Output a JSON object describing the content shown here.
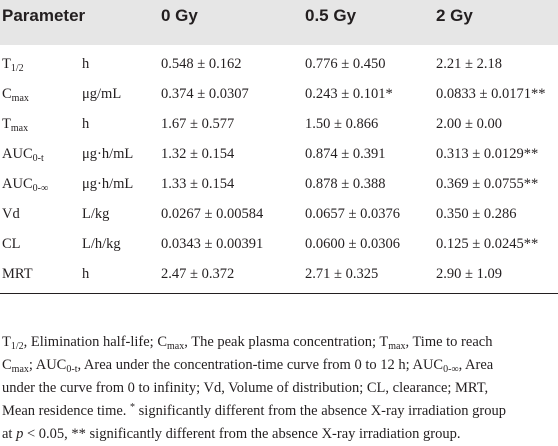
{
  "table": {
    "headers": [
      "Parameter",
      "0 Gy",
      "0.5 Gy",
      "2 Gy"
    ],
    "rows": [
      {
        "base": "T",
        "sub": "1/2",
        "unit": "h",
        "g0": "0.548 ± 0.162",
        "g05": "0.776 ± 0.450",
        "g2": "2.21 ± 2.18"
      },
      {
        "base": "C",
        "sub": "max",
        "unit": "μg/mL",
        "g0": "0.374 ± 0.0307",
        "g05": "0.243 ± 0.101*",
        "g2": "0.0833 ± 0.0171**"
      },
      {
        "base": "T",
        "sub": "max",
        "unit": "h",
        "g0": "1.67 ± 0.577",
        "g05": "1.50 ± 0.866",
        "g2": "2.00 ± 0.00"
      },
      {
        "base": "AUC",
        "sub": "0-t",
        "unit": "μg·h/mL",
        "g0": "1.32 ± 0.154",
        "g05": "0.874 ± 0.391",
        "g2": "0.313 ± 0.0129**"
      },
      {
        "base": "AUC",
        "sub": "0-∞",
        "unit": "μg·h/mL",
        "g0": "1.33 ± 0.154",
        "g05": "0.878 ± 0.388",
        "g2": "0.369 ± 0.0755**"
      },
      {
        "base": "Vd",
        "sub": "",
        "unit": "L/kg",
        "g0": "0.0267 ± 0.00584",
        "g05": "0.0657 ± 0.0376",
        "g2": "0.350 ± 0.286"
      },
      {
        "base": "CL",
        "sub": "",
        "unit": "L/h/kg",
        "g0": "0.0343 ± 0.00391",
        "g05": "0.0600 ± 0.0306",
        "g2": "0.125 ± 0.0245**"
      },
      {
        "base": "MRT",
        "sub": "",
        "unit": "h",
        "g0": "2.47 ± 0.372",
        "g05": "2.71 ± 0.325",
        "g2": "2.90 ± 1.09"
      }
    ]
  },
  "footnote": {
    "l1": {
      "t1": "T",
      "s1": "1/2",
      "t2": ", Elimination half-life; C",
      "s2": "max",
      "t3": ", The peak plasma concentration; T",
      "s3": "max",
      "t4": ", Time to reach"
    },
    "l2": {
      "t1": "C",
      "s1": "max",
      "t2": "; AUC",
      "s2": "0-t",
      "t3": ", Area under the concentration-time curve from 0 to 12 h; AUC",
      "s3": "0-∞",
      "t4": ", Area"
    },
    "l3": "under the curve from 0 to infinity; Vd, Volume of distribution; CL, clearance; MRT,",
    "l4": {
      "t1": "Mean residence time. ",
      "sup": "*",
      "t2": " significantly different from the absence X-ray irradiation group"
    },
    "l5": {
      "t1": "at ",
      "p": "p",
      "t2": " < 0.05, ** significantly different from the absence X-ray irradiation group."
    }
  }
}
